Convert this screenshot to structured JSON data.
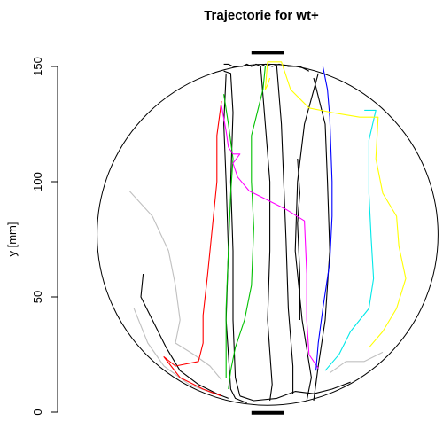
{
  "chart_data": {
    "type": "line",
    "title": "Trajectorie for wt+",
    "xlabel": "",
    "ylabel": "y [mm]",
    "ylim": [
      0,
      150
    ],
    "yticks": [
      0,
      50,
      100,
      150
    ],
    "arena": {
      "shape": "circle",
      "center": [
        0,
        77
      ],
      "radius": 74
    },
    "markers": [
      {
        "name": "top-bar",
        "x": [
          -7,
          7
        ],
        "y": 156
      },
      {
        "name": "bottom-bar",
        "x": [
          -7,
          7
        ],
        "y": -0.3
      }
    ],
    "series": [
      {
        "color": "#000000",
        "points": [
          [
            -18,
            147
          ],
          [
            -19,
            125
          ],
          [
            -18,
            100
          ],
          [
            -17,
            70
          ],
          [
            -18,
            40
          ],
          [
            -16,
            10
          ],
          [
            -14,
            6
          ],
          [
            -9,
            4
          ]
        ]
      },
      {
        "color": "#000000",
        "points": [
          [
            -19,
            151
          ],
          [
            -17,
            151
          ],
          [
            -15,
            150
          ],
          [
            -13,
            150
          ],
          [
            -11,
            150
          ],
          [
            -9,
            151
          ],
          [
            -7,
            150
          ],
          [
            -5,
            151
          ],
          [
            -3,
            150
          ],
          [
            -1,
            151
          ],
          [
            2,
            150
          ],
          [
            5,
            151
          ],
          [
            9,
            150
          ],
          [
            14,
            150
          ],
          [
            18,
            148
          ]
        ]
      },
      {
        "color": "#000000",
        "points": [
          [
            -19,
            148
          ],
          [
            -16,
            147
          ],
          [
            -15,
            130
          ],
          [
            -16,
            100
          ],
          [
            -15,
            70
          ],
          [
            -15,
            40
          ],
          [
            -14,
            15
          ],
          [
            -12,
            7
          ]
        ]
      },
      {
        "color": "#000000",
        "points": [
          [
            -3,
            150
          ],
          [
            -1,
            125
          ],
          [
            1,
            100
          ],
          [
            1,
            70
          ],
          [
            0,
            40
          ],
          [
            2,
            12
          ],
          [
            1,
            5
          ]
        ]
      },
      {
        "color": "#000000",
        "points": [
          [
            4,
            150
          ],
          [
            6,
            125
          ],
          [
            7,
            100
          ],
          [
            8,
            75
          ],
          [
            9,
            45
          ],
          [
            11,
            20
          ],
          [
            11,
            8
          ]
        ]
      },
      {
        "color": "#000000",
        "points": [
          [
            22,
            147
          ],
          [
            16,
            125
          ],
          [
            13,
            100
          ],
          [
            12,
            70
          ],
          [
            15,
            40
          ],
          [
            19,
            15
          ],
          [
            17,
            5
          ]
        ]
      },
      {
        "color": "#000000",
        "points": [
          [
            13,
            110
          ],
          [
            14,
            95
          ],
          [
            13,
            82
          ],
          [
            14,
            60
          ],
          [
            14,
            40
          ]
        ]
      },
      {
        "color": "#000000",
        "points": [
          [
            20,
            145
          ],
          [
            25,
            125
          ],
          [
            26,
            100
          ],
          [
            27,
            70
          ],
          [
            25,
            40
          ],
          [
            22,
            20
          ],
          [
            20,
            5
          ]
        ]
      },
      {
        "color": "#000000",
        "points": [
          [
            -54,
            60
          ],
          [
            -55,
            50
          ],
          [
            -50,
            40
          ],
          [
            -44,
            28
          ],
          [
            -38,
            18
          ],
          [
            -30,
            12
          ],
          [
            -22,
            8
          ],
          [
            -17,
            6
          ]
        ]
      },
      {
        "color": "#000000",
        "points": [
          [
            -12,
            7
          ],
          [
            -6,
            5
          ],
          [
            4,
            6
          ],
          [
            12,
            9
          ],
          [
            20,
            8
          ],
          [
            28,
            10
          ],
          [
            36,
            13
          ]
        ]
      },
      {
        "color": "#c0c0c0",
        "points": [
          [
            -60,
            96
          ],
          [
            -50,
            85
          ],
          [
            -43,
            70
          ],
          [
            -40,
            55
          ],
          [
            -38,
            40
          ],
          [
            -40,
            30
          ],
          [
            -32,
            25
          ],
          [
            -25,
            20
          ],
          [
            -20,
            14
          ]
        ]
      },
      {
        "color": "#c0c0c0",
        "points": [
          [
            27,
            17
          ],
          [
            34,
            22
          ],
          [
            42,
            22
          ],
          [
            50,
            26
          ]
        ]
      },
      {
        "color": "#c0c0c0",
        "points": [
          [
            -58,
            45
          ],
          [
            -52,
            30
          ],
          [
            -45,
            20
          ],
          [
            -34,
            12
          ],
          [
            -23,
            8
          ]
        ]
      },
      {
        "color": "#ff0000",
        "points": [
          [
            -20,
            135
          ],
          [
            -22,
            120
          ],
          [
            -22,
            100
          ],
          [
            -24,
            80
          ],
          [
            -26,
            60
          ],
          [
            -28,
            42
          ],
          [
            -28,
            30
          ],
          [
            -30,
            22
          ],
          [
            -40,
            20
          ],
          [
            -45,
            24
          ],
          [
            -38,
            15
          ],
          [
            -28,
            10
          ],
          [
            -20,
            7
          ]
        ]
      },
      {
        "color": "#00c000",
        "points": [
          [
            -1,
            150
          ],
          [
            -2,
            140
          ],
          [
            -5,
            128
          ],
          [
            -7,
            120
          ],
          [
            -7,
            100
          ],
          [
            -6,
            80
          ],
          [
            -7,
            55
          ],
          [
            -10,
            40
          ],
          [
            -14,
            28
          ],
          [
            -16,
            18
          ],
          [
            -17,
            10
          ]
        ]
      },
      {
        "color": "#00c000",
        "points": [
          [
            -19,
            138
          ],
          [
            -17,
            125
          ],
          [
            -15,
            110
          ],
          [
            -16,
            95
          ],
          [
            -17,
            70
          ],
          [
            -18,
            45
          ],
          [
            -18,
            25
          ],
          [
            -18,
            15
          ]
        ]
      },
      {
        "color": "#ff00ff",
        "points": [
          [
            -20,
            133
          ],
          [
            -18,
            122
          ],
          [
            -17,
            115
          ],
          [
            -15,
            112
          ],
          [
            -12,
            112
          ],
          [
            -15,
            108
          ],
          [
            -13,
            102
          ],
          [
            -8,
            96
          ],
          [
            0,
            92
          ],
          [
            8,
            88
          ],
          [
            16,
            83
          ],
          [
            17,
            60
          ],
          [
            17,
            40
          ],
          [
            18,
            25
          ],
          [
            22,
            19
          ]
        ]
      },
      {
        "color": "#0000ff",
        "points": [
          [
            24,
            150
          ],
          [
            26,
            140
          ],
          [
            27,
            128
          ],
          [
            28,
            100
          ],
          [
            28,
            85
          ],
          [
            27,
            65
          ],
          [
            24,
            45
          ],
          [
            22,
            30
          ],
          [
            21,
            18
          ]
        ]
      },
      {
        "color": "#00e8e8",
        "points": [
          [
            42,
            131
          ],
          [
            47,
            131
          ],
          [
            44,
            118
          ],
          [
            44,
            95
          ],
          [
            45,
            75
          ],
          [
            46,
            58
          ],
          [
            44,
            45
          ],
          [
            36,
            35
          ],
          [
            31,
            25
          ],
          [
            25,
            18
          ]
        ]
      },
      {
        "color": "#ffff00",
        "points": [
          [
            1,
            145
          ],
          [
            0,
            142
          ],
          [
            -1,
            140
          ],
          [
            0,
            152
          ],
          [
            6,
            152
          ],
          [
            10,
            140
          ],
          [
            18,
            132
          ],
          [
            28,
            130
          ],
          [
            40,
            128
          ],
          [
            48,
            128
          ],
          [
            47,
            110
          ],
          [
            50,
            95
          ],
          [
            56,
            85
          ],
          [
            57,
            72
          ],
          [
            60,
            58
          ],
          [
            56,
            45
          ],
          [
            50,
            35
          ],
          [
            44,
            28
          ]
        ]
      }
    ]
  }
}
